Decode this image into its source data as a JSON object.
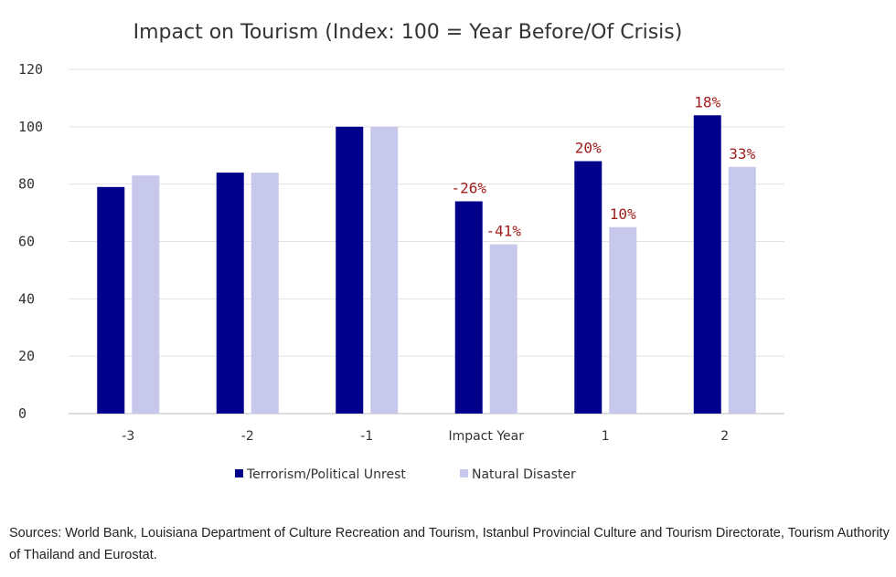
{
  "chart_data": {
    "type": "bar",
    "title": "Impact on Tourism (Index: 100 = Year Before/Of Crisis)",
    "xlabel": "",
    "ylabel": "",
    "ylim": [
      0,
      120
    ],
    "yticks": [
      "0",
      "20",
      "40",
      "60",
      "80",
      "100",
      "120"
    ],
    "grid": true,
    "legend_position": "bottom",
    "categories": [
      "-3",
      "-2",
      "-1",
      "Impact Year",
      "1",
      "2"
    ],
    "series": [
      {
        "name": "Terrorism/Political Unrest",
        "color": "#00008b",
        "values": [
          79,
          84,
          100,
          74,
          88,
          104
        ],
        "labels": [
          "",
          "",
          "",
          "-26%",
          "20%",
          "18%"
        ]
      },
      {
        "name": "Natural Disaster",
        "color": "#c8c8ec",
        "values": [
          83,
          84,
          100,
          59,
          65,
          86
        ],
        "labels": [
          "",
          "",
          "",
          "-41%",
          "10%",
          "33%"
        ]
      }
    ]
  },
  "source": "Sources: World Bank, Louisiana Department of Culture Recreation and Tourism, Istanbul Provincial Culture and Tourism Directorate, Tourism Authority of Thailand and Eurostat."
}
